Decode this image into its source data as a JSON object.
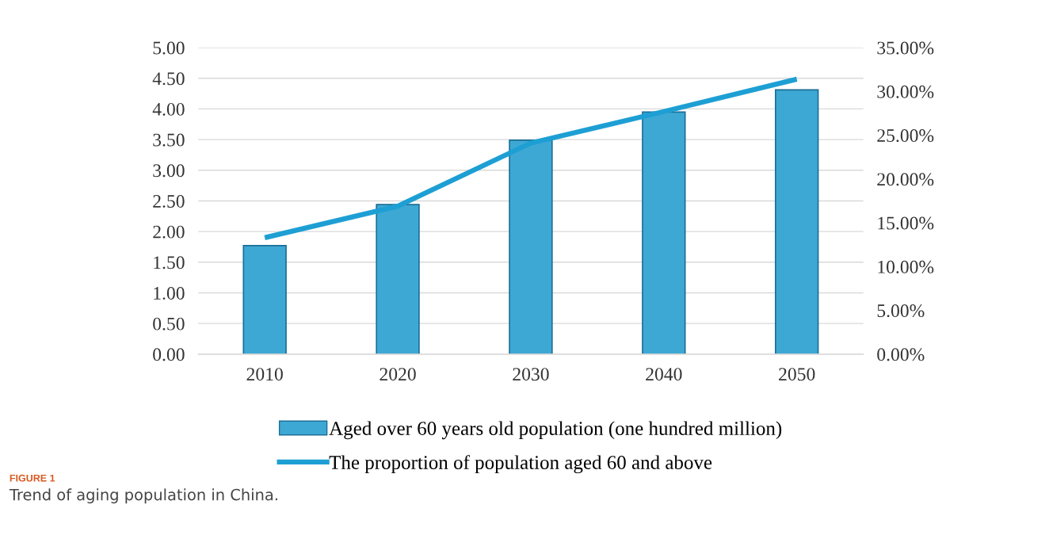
{
  "chart_data": {
    "type": "bar",
    "categories": [
      "2010",
      "2020",
      "2030",
      "2040",
      "2050"
    ],
    "series": [
      {
        "name": "Aged over 60 years old population (one hundred million)",
        "color": "#3ea8d4",
        "values": [
          1.77,
          2.44,
          3.49,
          3.95,
          4.31
        ]
      },
      {
        "name": "The proportion of population aged 60 and above",
        "type": "line",
        "axis": "y2",
        "color": "#1e9fd4",
        "values": [
          13.3,
          16.9,
          24.1,
          27.7,
          31.4
        ]
      }
    ],
    "ylim": [
      0,
      5
    ],
    "yticks": [
      {
        "value": 0,
        "label": "0.00"
      },
      {
        "value": 0.5,
        "label": "0.50"
      },
      {
        "value": 1,
        "label": "1.00"
      },
      {
        "value": 1.5,
        "label": "1.50"
      },
      {
        "value": 2,
        "label": "2.00"
      },
      {
        "value": 2.5,
        "label": "2.50"
      },
      {
        "value": 3,
        "label": "3.00"
      },
      {
        "value": 3.5,
        "label": "3.50"
      },
      {
        "value": 4,
        "label": "4.00"
      },
      {
        "value": 4.5,
        "label": "4.50"
      },
      {
        "value": 5,
        "label": "5.00"
      }
    ],
    "y2lim": [
      0,
      35
    ],
    "y2ticks": [
      {
        "value": 0,
        "label": "0.00%"
      },
      {
        "value": 5,
        "label": "5.00%"
      },
      {
        "value": 10,
        "label": "10.00%"
      },
      {
        "value": 15,
        "label": "15.00%"
      },
      {
        "value": 20,
        "label": "20.00%"
      },
      {
        "value": 25,
        "label": "25.00%"
      },
      {
        "value": 30,
        "label": "30.00%"
      },
      {
        "value": 35,
        "label": "35.00%"
      }
    ],
    "grid": "y",
    "legend": "bottom",
    "marker": "none",
    "line_style": "solid",
    "annotations": [
      "FIGURE 1",
      "Trend of aging population in China."
    ]
  }
}
